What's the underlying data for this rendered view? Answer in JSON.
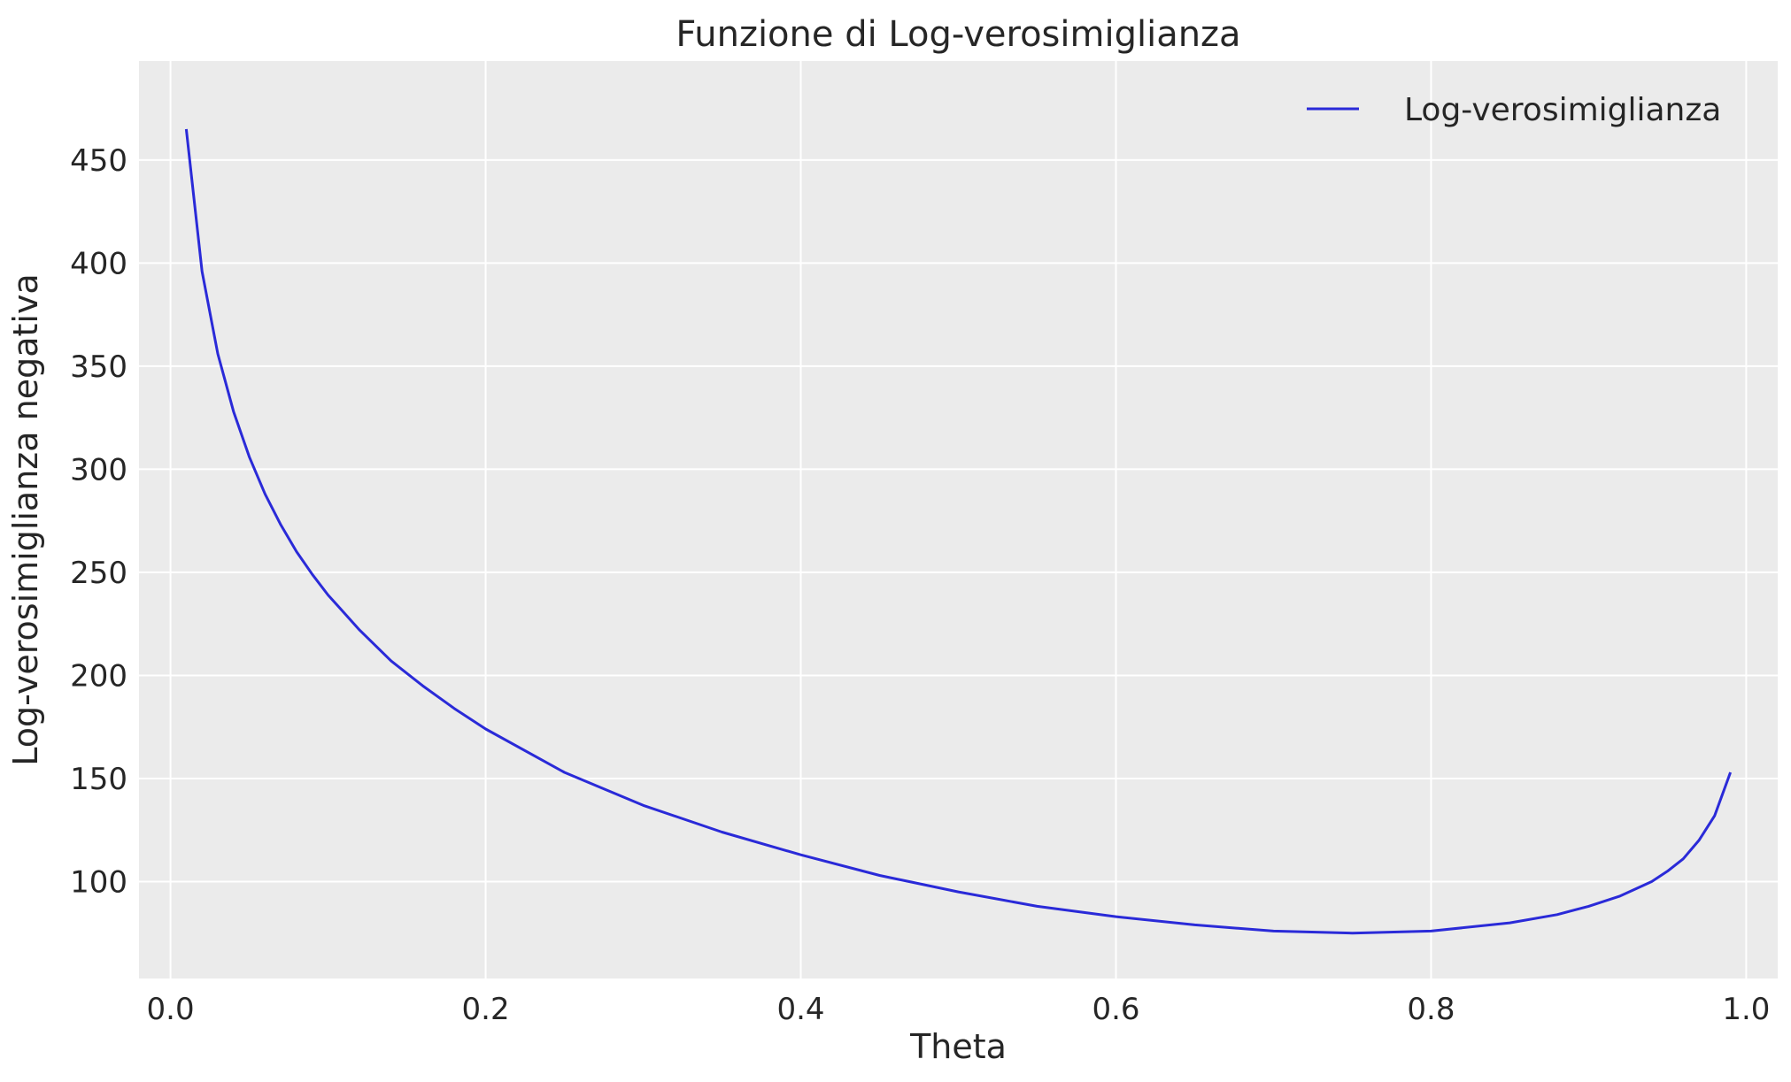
{
  "chart_data": {
    "type": "line",
    "title": "Funzione di Log-verosimiglianza",
    "xlabel": "Theta",
    "ylabel": "Log-verosimiglianza negativa",
    "xlim": [
      -0.02,
      1.02
    ],
    "ylim": [
      53,
      498
    ],
    "x_ticks": [
      0.0,
      0.2,
      0.4,
      0.6,
      0.8,
      1.0
    ],
    "x_tick_labels": [
      "0.0",
      "0.2",
      "0.4",
      "0.6",
      "0.8",
      "1.0"
    ],
    "y_ticks": [
      100,
      150,
      200,
      250,
      300,
      350,
      400,
      450
    ],
    "y_tick_labels": [
      "100",
      "150",
      "200",
      "250",
      "300",
      "350",
      "400",
      "450"
    ],
    "grid": true,
    "legend_position": "top-right",
    "background_color": "#ebebeb",
    "series": [
      {
        "name": "Log-verosimiglianza",
        "color": "#2a2ad8",
        "x": [
          0.01,
          0.02,
          0.03,
          0.04,
          0.05,
          0.06,
          0.07,
          0.08,
          0.09,
          0.1,
          0.12,
          0.14,
          0.16,
          0.18,
          0.2,
          0.25,
          0.3,
          0.35,
          0.4,
          0.45,
          0.5,
          0.55,
          0.6,
          0.65,
          0.7,
          0.75,
          0.8,
          0.85,
          0.88,
          0.9,
          0.92,
          0.94,
          0.95,
          0.96,
          0.97,
          0.98,
          0.99
        ],
        "y": [
          465,
          396,
          356,
          328,
          306,
          288,
          273,
          260,
          249,
          239,
          222,
          207,
          195,
          184,
          174,
          153,
          137,
          124,
          113,
          103,
          95,
          88,
          83,
          79,
          76,
          75,
          76,
          80,
          84,
          88,
          93,
          100,
          105,
          111,
          120,
          132,
          153
        ]
      }
    ]
  }
}
